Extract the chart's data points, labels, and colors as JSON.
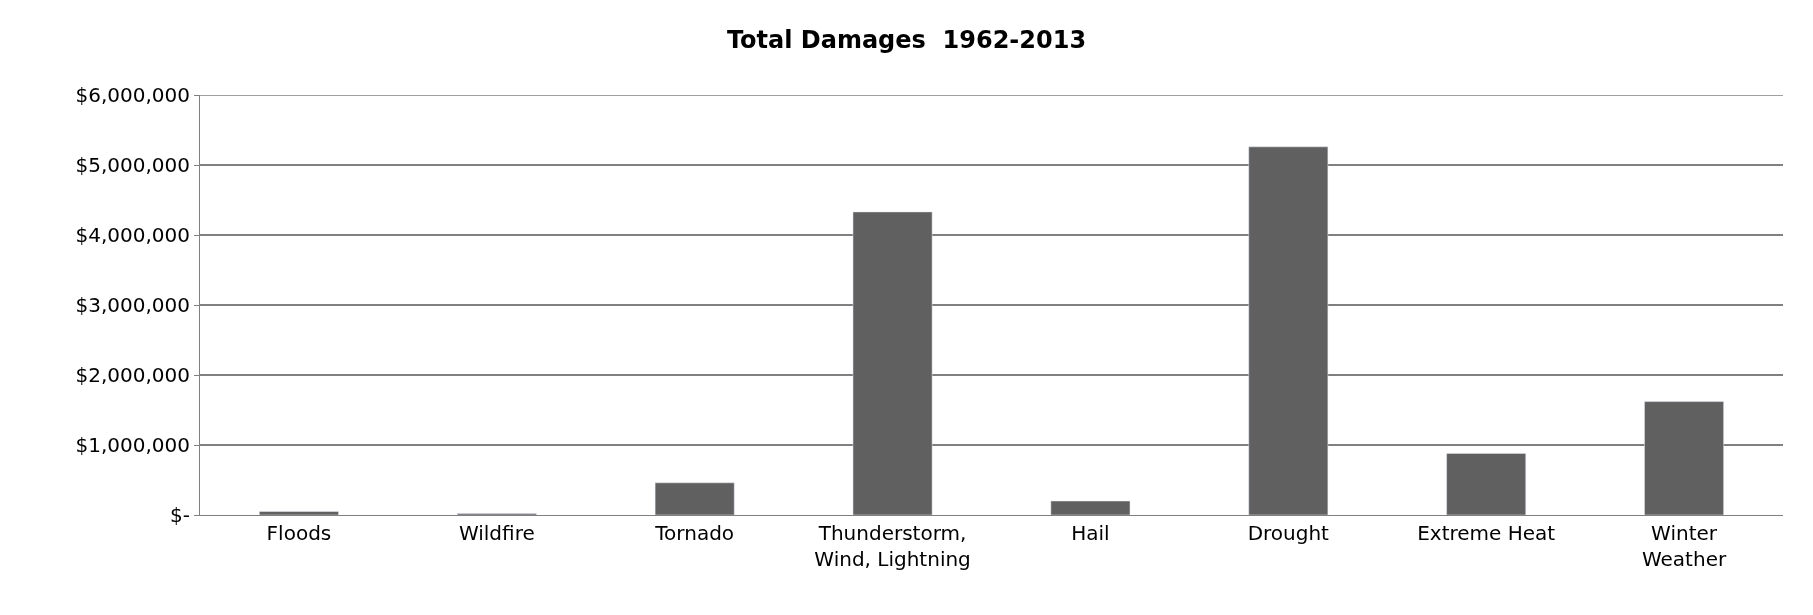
{
  "chart_data": {
    "type": "bar",
    "title": "Total Damages  1962-2013",
    "categories": [
      "Floods",
      "Wildfire",
      "Tornado",
      "Thunderstorm,\nWind, Lightning",
      "Hail",
      "Drought",
      "Extreme Heat",
      "Winter\nWeather"
    ],
    "values": [
      50000,
      20000,
      460000,
      4330000,
      200000,
      5260000,
      880000,
      1620000
    ],
    "color": "#606060",
    "ylim": [
      0,
      6000000
    ],
    "yticks": [
      {
        "value": 0,
        "label": "$-"
      },
      {
        "value": 1000000,
        "label": "$1,000,000"
      },
      {
        "value": 2000000,
        "label": "$2,000,000"
      },
      {
        "value": 3000000,
        "label": "$3,000,000"
      },
      {
        "value": 4000000,
        "label": "$4,000,000"
      },
      {
        "value": 5000000,
        "label": "$5,000,000"
      },
      {
        "value": 6000000,
        "label": "$6,000,000"
      }
    ],
    "grid": "y"
  }
}
